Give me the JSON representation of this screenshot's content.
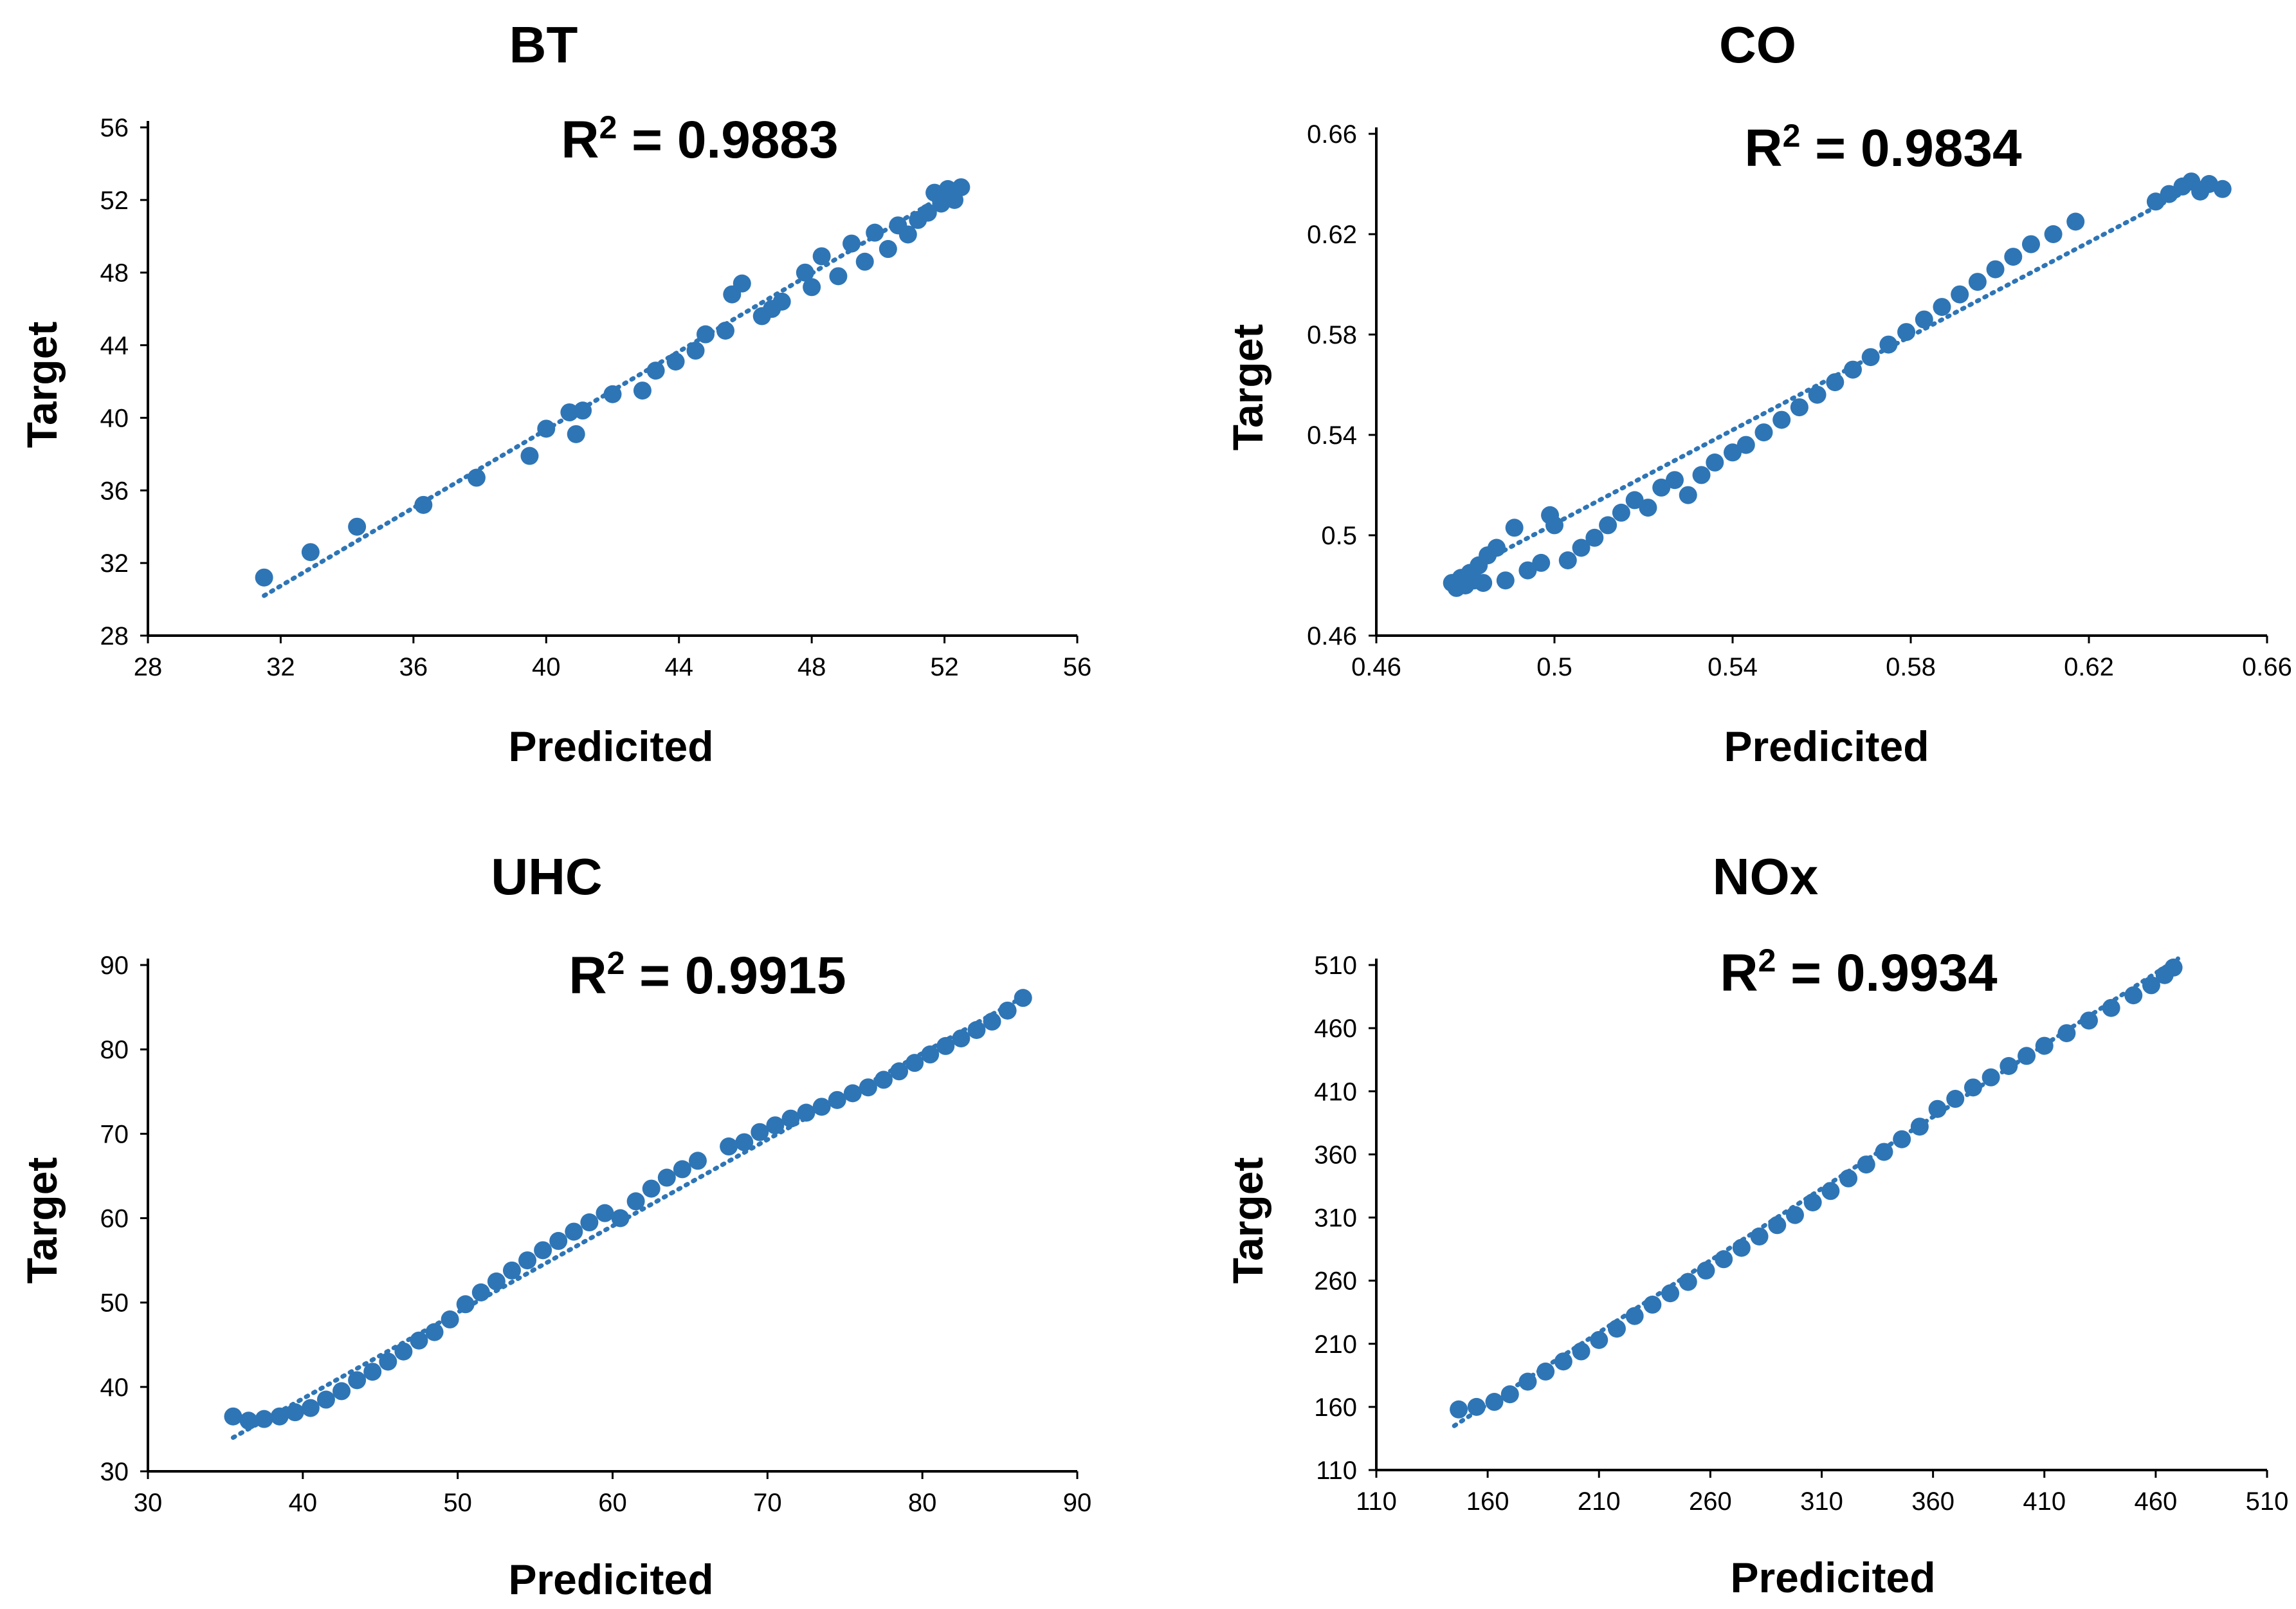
{
  "colors": {
    "marker": "#2e75b6",
    "trend": "#2e75b6",
    "axis": "#000000"
  },
  "chart_data": [
    {
      "type": "scatter",
      "title": "BT",
      "r2_label": "R² = 0.9883",
      "r2_prefix": "R",
      "r2_sup": "2",
      "r2_value": " = 0.9883",
      "xlabel": "Predicited",
      "ylabel": "Target",
      "xlim": [
        28,
        56
      ],
      "ylim": [
        28,
        56
      ],
      "xticks": [
        28,
        32,
        36,
        40,
        44,
        48,
        52,
        56
      ],
      "yticks": [
        28,
        32,
        36,
        40,
        44,
        48,
        52,
        56
      ],
      "trendline": {
        "x": [
          31.5,
          52.5
        ],
        "y": [
          30.2,
          52.8
        ]
      },
      "x": [
        31.5,
        32.9,
        34.3,
        36.3,
        37.9,
        39.5,
        40.0,
        40.7,
        40.9,
        41.1,
        42.0,
        42.9,
        43.3,
        43.9,
        44.5,
        44.8,
        45.4,
        45.6,
        45.9,
        46.5,
        46.8,
        47.1,
        47.8,
        48.0,
        48.3,
        48.8,
        49.2,
        49.6,
        49.9,
        50.3,
        50.6,
        50.9,
        51.2,
        51.5,
        51.7,
        51.9,
        52.1,
        52.3,
        52.5
      ],
      "y": [
        31.2,
        32.6,
        34.0,
        35.2,
        36.7,
        37.9,
        39.4,
        40.3,
        39.1,
        40.4,
        41.3,
        41.5,
        42.6,
        43.1,
        43.7,
        44.6,
        44.8,
        46.8,
        47.4,
        45.6,
        46.0,
        46.4,
        48.0,
        47.2,
        48.9,
        47.8,
        49.6,
        48.6,
        50.2,
        49.3,
        50.6,
        50.1,
        50.9,
        51.3,
        52.4,
        51.8,
        52.6,
        52.0,
        52.7
      ]
    },
    {
      "type": "scatter",
      "title": "CO",
      "r2_label": "R² = 0.9834",
      "r2_prefix": "R",
      "r2_sup": "2",
      "r2_value": " = 0.9834",
      "xlabel": "Predicited",
      "ylabel": "Target",
      "xlim": [
        0.46,
        0.66
      ],
      "ylim": [
        0.46,
        0.66
      ],
      "xticks": [
        "0.46",
        "0.5",
        "0.54",
        "0.58",
        "0.62",
        "0.66"
      ],
      "yticks": [
        "0.46",
        "0.5",
        "0.54",
        "0.58",
        "0.62",
        "0.66"
      ],
      "trendline": {
        "x": [
          0.477,
          0.648
        ],
        "y": [
          0.483,
          0.643
        ]
      },
      "x": [
        0.477,
        0.478,
        0.479,
        0.48,
        0.481,
        0.482,
        0.483,
        0.484,
        0.485,
        0.487,
        0.489,
        0.491,
        0.494,
        0.497,
        0.499,
        0.5,
        0.503,
        0.506,
        0.509,
        0.512,
        0.515,
        0.518,
        0.521,
        0.524,
        0.527,
        0.53,
        0.533,
        0.536,
        0.54,
        0.543,
        0.547,
        0.551,
        0.555,
        0.559,
        0.563,
        0.567,
        0.571,
        0.575,
        0.579,
        0.583,
        0.587,
        0.591,
        0.595,
        0.599,
        0.603,
        0.607,
        0.612,
        0.617,
        0.635,
        0.638,
        0.641,
        0.643,
        0.645,
        0.647,
        0.65
      ],
      "y": [
        0.481,
        0.479,
        0.483,
        0.48,
        0.485,
        0.482,
        0.488,
        0.481,
        0.492,
        0.495,
        0.482,
        0.503,
        0.486,
        0.489,
        0.508,
        0.504,
        0.49,
        0.495,
        0.499,
        0.504,
        0.509,
        0.514,
        0.511,
        0.519,
        0.522,
        0.516,
        0.524,
        0.529,
        0.533,
        0.536,
        0.541,
        0.546,
        0.551,
        0.556,
        0.561,
        0.566,
        0.571,
        0.576,
        0.581,
        0.586,
        0.591,
        0.596,
        0.601,
        0.606,
        0.611,
        0.616,
        0.62,
        0.625,
        0.633,
        0.636,
        0.639,
        0.641,
        0.637,
        0.64,
        0.638
      ]
    },
    {
      "type": "scatter",
      "title": "UHC",
      "r2_label": "R² = 0.9915",
      "r2_prefix": "R",
      "r2_sup": "2",
      "r2_value": " = 0.9915",
      "xlabel": "Predicited",
      "ylabel": "Target",
      "xlim": [
        30,
        90
      ],
      "ylim": [
        30,
        90
      ],
      "xticks": [
        30,
        40,
        50,
        60,
        70,
        80,
        90
      ],
      "yticks": [
        30,
        40,
        50,
        60,
        70,
        80,
        90
      ],
      "trendline": {
        "x": [
          35.5,
          86.5
        ],
        "y": [
          34.0,
          86.2
        ]
      },
      "x": [
        35.5,
        36.5,
        37.5,
        38.5,
        39.5,
        40.5,
        41.5,
        42.5,
        43.5,
        44.5,
        45.5,
        46.5,
        47.5,
        48.5,
        49.5,
        50.5,
        51.5,
        52.5,
        53.5,
        54.5,
        55.5,
        56.5,
        57.5,
        58.5,
        59.5,
        60.5,
        61.5,
        62.5,
        63.5,
        64.5,
        65.5,
        67.5,
        68.5,
        69.5,
        70.5,
        71.5,
        72.5,
        73.5,
        74.5,
        75.5,
        76.5,
        77.5,
        78.5,
        79.5,
        80.5,
        81.5,
        82.5,
        83.5,
        84.5,
        85.5,
        86.5
      ],
      "y": [
        36.5,
        36.0,
        36.2,
        36.5,
        37.0,
        37.5,
        38.5,
        39.5,
        40.8,
        41.8,
        43.0,
        44.2,
        45.5,
        46.5,
        48.0,
        49.8,
        51.2,
        52.5,
        53.8,
        55.0,
        56.2,
        57.3,
        58.4,
        59.5,
        60.6,
        60.0,
        62.0,
        63.5,
        64.8,
        65.8,
        66.8,
        68.5,
        69.0,
        70.2,
        71.0,
        71.8,
        72.5,
        73.2,
        74.0,
        74.8,
        75.5,
        76.4,
        77.4,
        78.4,
        79.4,
        80.4,
        81.3,
        82.3,
        83.3,
        84.6,
        86.1
      ]
    },
    {
      "type": "scatter",
      "title": "NOx",
      "r2_label": "R² = 0.9934",
      "r2_prefix": "R",
      "r2_sup": "2",
      "r2_value": " = 0.9934",
      "xlabel": "Predicited",
      "ylabel": "Target",
      "xlim": [
        110,
        510
      ],
      "ylim": [
        110,
        510
      ],
      "xticks": [
        110,
        160,
        210,
        260,
        310,
        360,
        410,
        460,
        510
      ],
      "yticks": [
        110,
        160,
        210,
        260,
        310,
        360,
        410,
        460,
        510
      ],
      "trendline": {
        "x": [
          145,
          470
        ],
        "y": [
          145,
          515
        ]
      },
      "x": [
        147,
        155,
        163,
        170,
        178,
        186,
        194,
        202,
        210,
        218,
        226,
        234,
        242,
        250,
        258,
        266,
        274,
        282,
        290,
        298,
        306,
        314,
        322,
        330,
        338,
        346,
        354,
        362,
        370,
        378,
        386,
        394,
        402,
        410,
        420,
        430,
        440,
        450,
        458,
        464,
        468
      ],
      "y": [
        158,
        160,
        164,
        170,
        180,
        188,
        196,
        204,
        213,
        222,
        232,
        241,
        250,
        259,
        268,
        277,
        286,
        295,
        304,
        312,
        322,
        331,
        341,
        352,
        362,
        372,
        382,
        396,
        404,
        413,
        421,
        430,
        438,
        446,
        456,
        466,
        476,
        486,
        494,
        502,
        508
      ]
    }
  ]
}
